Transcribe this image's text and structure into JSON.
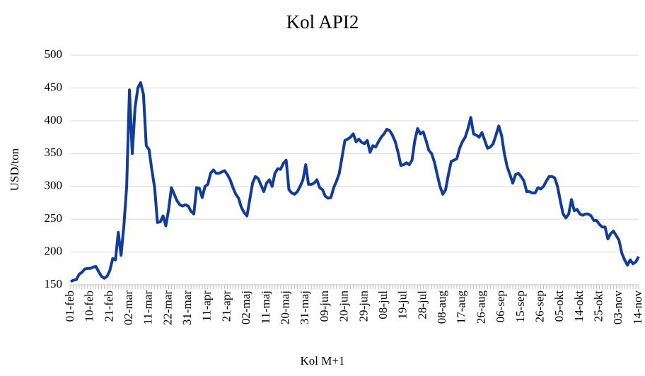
{
  "chart_data": {
    "type": "line",
    "title": "Kol API2",
    "y_label": "USD/ton",
    "categories": [
      "01-feb",
      null,
      null,
      null,
      null,
      null,
      null,
      "10-feb",
      null,
      null,
      null,
      null,
      null,
      null,
      "21-feb",
      null,
      null,
      null,
      null,
      null,
      null,
      "02-mar",
      null,
      null,
      null,
      null,
      null,
      null,
      "11-mar",
      null,
      null,
      null,
      null,
      null,
      null,
      "22-mar",
      null,
      null,
      null,
      null,
      null,
      null,
      "31-mar",
      null,
      null,
      null,
      null,
      null,
      null,
      "11-apr",
      null,
      null,
      null,
      null,
      null,
      null,
      "21-apr",
      null,
      null,
      null,
      null,
      null,
      null,
      "02-maj",
      null,
      null,
      null,
      null,
      null,
      null,
      "11-maj",
      null,
      null,
      null,
      null,
      null,
      null,
      "20-maj",
      null,
      null,
      null,
      null,
      null,
      null,
      "31-maj",
      null,
      null,
      null,
      null,
      null,
      null,
      "09-jun",
      null,
      null,
      null,
      null,
      null,
      null,
      "20-jun",
      null,
      null,
      null,
      null,
      null,
      null,
      "29-jun",
      null,
      null,
      null,
      null,
      null,
      null,
      "08-jul",
      null,
      null,
      null,
      null,
      null,
      null,
      "19-jul",
      null,
      null,
      null,
      null,
      null,
      null,
      "28-jul",
      null,
      null,
      null,
      null,
      null,
      null,
      "08-aug",
      null,
      null,
      null,
      null,
      null,
      null,
      "17-aug",
      null,
      null,
      null,
      null,
      null,
      null,
      "26-aug",
      null,
      null,
      null,
      null,
      null,
      null,
      "06-sep",
      null,
      null,
      null,
      null,
      null,
      null,
      "15-sep",
      null,
      null,
      null,
      null,
      null,
      null,
      "26-sep",
      null,
      null,
      null,
      null,
      null,
      null,
      "05-okt",
      null,
      null,
      null,
      null,
      null,
      null,
      "14-okt",
      null,
      null,
      null,
      null,
      null,
      null,
      "25-okt",
      null,
      null,
      null,
      null,
      null,
      null,
      "03-nov",
      null,
      null,
      null,
      null,
      null,
      null,
      "14-nov"
    ],
    "series": [
      {
        "name": "Kol M+1",
        "color": "#123c96",
        "values": [
          155,
          157,
          158,
          166,
          169,
          174,
          175,
          175,
          177,
          178,
          170,
          163,
          160,
          163,
          172,
          190,
          188,
          230,
          195,
          240,
          300,
          447,
          350,
          420,
          450,
          458,
          440,
          362,
          356,
          325,
          298,
          245,
          246,
          255,
          240,
          265,
          298,
          288,
          278,
          272,
          270,
          272,
          270,
          262,
          258,
          298,
          297,
          283,
          300,
          303,
          320,
          325,
          320,
          320,
          322,
          324,
          318,
          310,
          298,
          288,
          282,
          268,
          260,
          255,
          280,
          305,
          315,
          312,
          302,
          292,
          305,
          310,
          300,
          320,
          327,
          326,
          335,
          340,
          295,
          290,
          288,
          292,
          300,
          310,
          333,
          303,
          303,
          305,
          310,
          298,
          295,
          285,
          282,
          283,
          298,
          308,
          320,
          345,
          370,
          372,
          375,
          380,
          368,
          372,
          367,
          365,
          370,
          352,
          362,
          360,
          368,
          375,
          380,
          387,
          385,
          378,
          368,
          352,
          332,
          333,
          336,
          333,
          340,
          370,
          388,
          380,
          383,
          370,
          355,
          350,
          337,
          318,
          300,
          288,
          295,
          318,
          338,
          340,
          342,
          358,
          368,
          375,
          388,
          405,
          380,
          378,
          375,
          382,
          370,
          358,
          360,
          365,
          378,
          392,
          378,
          350,
          330,
          318,
          305,
          318,
          320,
          315,
          308,
          292,
          292,
          290,
          290,
          298,
          296,
          300,
          308,
          315,
          315,
          313,
          300,
          278,
          258,
          252,
          258,
          280,
          263,
          265,
          258,
          256,
          258,
          258,
          255,
          248,
          248,
          242,
          238,
          238,
          220,
          228,
          232,
          225,
          218,
          198,
          188,
          180,
          188,
          182,
          185,
          193
        ]
      }
    ],
    "ylim": [
      150,
      500
    ],
    "yticks": [
      150,
      200,
      250,
      300,
      350,
      400,
      450,
      500
    ],
    "grid": true,
    "legend": "bottom"
  }
}
